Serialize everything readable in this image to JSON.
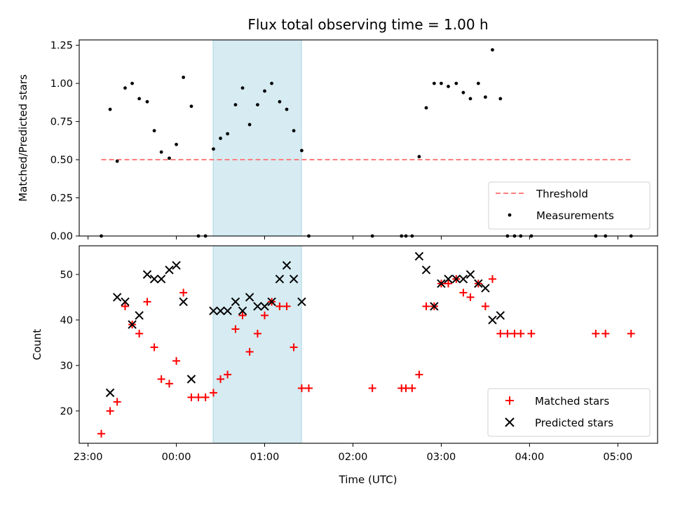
{
  "chart_data": [
    {
      "id": "top",
      "type": "scatter",
      "title": "Flux total observing time = 1.00 h",
      "xlabel": "",
      "ylabel": "Matched/Predicted stars",
      "x_unit": "hours relative to 00:00 UTC",
      "xlim": [
        -1.1,
        5.45
      ],
      "ylim": [
        0,
        1.285
      ],
      "yticks": [
        "0.00",
        "0.25",
        "0.50",
        "0.75",
        "1.00",
        "1.25"
      ],
      "shaded_interval": [
        0.417,
        1.417
      ],
      "threshold": {
        "name": "Threshold",
        "value": 0.5,
        "x": [
          -0.85,
          5.15
        ],
        "color": "#ff7f7f"
      },
      "series": [
        {
          "name": "Measurements",
          "color": "#000000",
          "points": [
            [
              -0.85,
              0.0
            ],
            [
              -0.75,
              0.83
            ],
            [
              -0.67,
              0.49
            ],
            [
              -0.58,
              0.97
            ],
            [
              -0.5,
              1.0
            ],
            [
              -0.42,
              0.9
            ],
            [
              -0.33,
              0.88
            ],
            [
              -0.25,
              0.69
            ],
            [
              -0.17,
              0.55
            ],
            [
              -0.08,
              0.51
            ],
            [
              0.0,
              0.6
            ],
            [
              0.08,
              1.04
            ],
            [
              0.17,
              0.85
            ],
            [
              0.25,
              0.0
            ],
            [
              0.33,
              0.0
            ],
            [
              0.42,
              0.57
            ],
            [
              0.5,
              0.64
            ],
            [
              0.58,
              0.67
            ],
            [
              0.67,
              0.86
            ],
            [
              0.75,
              0.97
            ],
            [
              0.83,
              0.73
            ],
            [
              0.92,
              0.86
            ],
            [
              1.0,
              0.95
            ],
            [
              1.08,
              1.0
            ],
            [
              1.17,
              0.88
            ],
            [
              1.25,
              0.83
            ],
            [
              1.33,
              0.69
            ],
            [
              1.42,
              0.56
            ],
            [
              1.5,
              0.0
            ],
            [
              2.22,
              0.0
            ],
            [
              2.55,
              0.0
            ],
            [
              2.6,
              0.0
            ],
            [
              2.67,
              0.0
            ],
            [
              2.75,
              0.52
            ],
            [
              2.83,
              0.84
            ],
            [
              2.92,
              1.0
            ],
            [
              3.0,
              1.0
            ],
            [
              3.08,
              0.98
            ],
            [
              3.17,
              1.0
            ],
            [
              3.25,
              0.94
            ],
            [
              3.33,
              0.9
            ],
            [
              3.42,
              1.0
            ],
            [
              3.5,
              0.91
            ],
            [
              3.58,
              1.22
            ],
            [
              3.67,
              0.9
            ],
            [
              3.75,
              0.0
            ],
            [
              3.83,
              0.0
            ],
            [
              3.9,
              0.0
            ],
            [
              4.02,
              0.0
            ],
            [
              4.75,
              0.0
            ],
            [
              4.86,
              0.0
            ],
            [
              5.15,
              0.0
            ]
          ]
        }
      ],
      "legend": {
        "location": "lower right",
        "entries": [
          "Threshold",
          "Measurements"
        ]
      }
    },
    {
      "id": "bottom",
      "type": "scatter",
      "title": "",
      "xlabel": "Time (UTC)",
      "ylabel": "Count",
      "x_unit": "hours relative to 00:00 UTC",
      "xlim": [
        -1.1,
        5.45
      ],
      "ylim": [
        12.9,
        56.3
      ],
      "yticks": [
        "20",
        "30",
        "40",
        "50"
      ],
      "xticks": [
        {
          "value": -1,
          "label": "23:00"
        },
        {
          "value": 0,
          "label": "00:00"
        },
        {
          "value": 1,
          "label": "01:00"
        },
        {
          "value": 2,
          "label": "02:00"
        },
        {
          "value": 3,
          "label": "03:00"
        },
        {
          "value": 4,
          "label": "04:00"
        },
        {
          "value": 5,
          "label": "05:00"
        }
      ],
      "shaded_interval": [
        0.417,
        1.417
      ],
      "series": [
        {
          "name": "Matched stars",
          "marker": "plus",
          "color": "#ff0000",
          "points": [
            [
              -0.85,
              15
            ],
            [
              -0.75,
              20
            ],
            [
              -0.67,
              22
            ],
            [
              -0.58,
              43
            ],
            [
              -0.5,
              39
            ],
            [
              -0.42,
              37
            ],
            [
              -0.33,
              44
            ],
            [
              -0.25,
              34
            ],
            [
              -0.17,
              27
            ],
            [
              -0.08,
              26
            ],
            [
              0.0,
              31
            ],
            [
              0.08,
              46
            ],
            [
              0.17,
              23
            ],
            [
              0.25,
              23
            ],
            [
              0.33,
              23
            ],
            [
              0.42,
              24
            ],
            [
              0.5,
              27
            ],
            [
              0.58,
              28
            ],
            [
              0.67,
              38
            ],
            [
              0.75,
              41
            ],
            [
              0.83,
              33
            ],
            [
              0.92,
              37
            ],
            [
              1.0,
              41
            ],
            [
              1.08,
              44
            ],
            [
              1.17,
              43
            ],
            [
              1.25,
              43
            ],
            [
              1.33,
              34
            ],
            [
              1.42,
              25
            ],
            [
              1.5,
              25
            ],
            [
              2.22,
              25
            ],
            [
              2.55,
              25
            ],
            [
              2.6,
              25
            ],
            [
              2.67,
              25
            ],
            [
              2.75,
              28
            ],
            [
              2.83,
              43
            ],
            [
              2.92,
              43
            ],
            [
              3.0,
              48
            ],
            [
              3.08,
              48
            ],
            [
              3.17,
              49
            ],
            [
              3.25,
              46
            ],
            [
              3.33,
              45
            ],
            [
              3.42,
              48
            ],
            [
              3.5,
              43
            ],
            [
              3.58,
              49
            ],
            [
              3.67,
              37
            ],
            [
              3.75,
              37
            ],
            [
              3.83,
              37
            ],
            [
              3.9,
              37
            ],
            [
              4.02,
              37
            ],
            [
              4.75,
              37
            ],
            [
              4.86,
              37
            ],
            [
              5.15,
              37
            ]
          ]
        },
        {
          "name": "Predicted stars",
          "marker": "x",
          "color": "#000000",
          "points": [
            [
              -0.75,
              24
            ],
            [
              -0.67,
              45
            ],
            [
              -0.58,
              44
            ],
            [
              -0.5,
              39
            ],
            [
              -0.42,
              41
            ],
            [
              -0.33,
              50
            ],
            [
              -0.25,
              49
            ],
            [
              -0.17,
              49
            ],
            [
              -0.08,
              51
            ],
            [
              0.0,
              52
            ],
            [
              0.08,
              44
            ],
            [
              0.17,
              27
            ],
            [
              0.42,
              42
            ],
            [
              0.5,
              42
            ],
            [
              0.58,
              42
            ],
            [
              0.67,
              44
            ],
            [
              0.75,
              42
            ],
            [
              0.83,
              45
            ],
            [
              0.92,
              43
            ],
            [
              1.0,
              43
            ],
            [
              1.08,
              44
            ],
            [
              1.17,
              49
            ],
            [
              1.25,
              52
            ],
            [
              1.33,
              49
            ],
            [
              1.42,
              44
            ],
            [
              2.75,
              54
            ],
            [
              2.83,
              51
            ],
            [
              2.92,
              43
            ],
            [
              3.0,
              48
            ],
            [
              3.08,
              49
            ],
            [
              3.17,
              49
            ],
            [
              3.25,
              49
            ],
            [
              3.33,
              50
            ],
            [
              3.42,
              48
            ],
            [
              3.5,
              47
            ],
            [
              3.58,
              40
            ],
            [
              3.67,
              41
            ]
          ]
        }
      ],
      "legend": {
        "location": "lower right",
        "entries": [
          "Matched stars",
          "Predicted stars"
        ]
      }
    }
  ]
}
